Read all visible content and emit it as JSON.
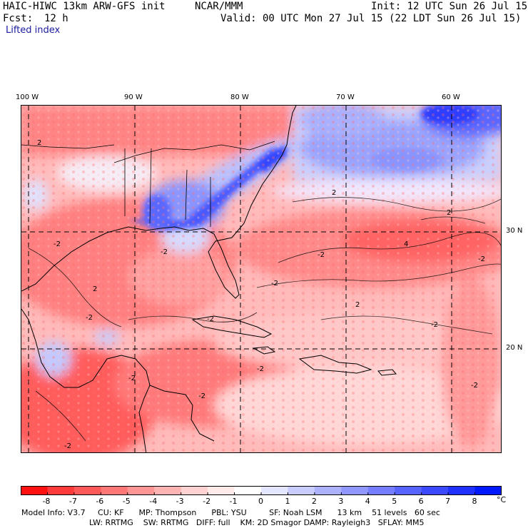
{
  "header": {
    "model_title": "HAIC-HIWC 13km ARW-GFS init",
    "org": "NCAR/MMM",
    "init": "Init: 12 UTC Sun 26 Jul 15",
    "forecast_label": "Fcst:",
    "forecast_value": "12 h",
    "valid": "Valid: 00 UTC Mon 27 Jul 15 (22 LDT Sun 26 Jul 15)",
    "field_name": "Lifted index"
  },
  "map": {
    "lon_labels": [
      "100 W",
      "90 W",
      "80 W",
      "70 W",
      "60 W"
    ],
    "lat_labels": [
      "30 N",
      "20 N"
    ],
    "contour_labels": [
      "2",
      "-2",
      "2",
      "4",
      "-2",
      "2",
      "-2",
      "2",
      "-2",
      "-2",
      "-2",
      "-2",
      "-2",
      "-2",
      "-2",
      "-2",
      "-2",
      "2",
      "-2"
    ]
  },
  "colorbar": {
    "tick_labels": [
      "-8",
      "-7",
      "-6",
      "-5",
      "-4",
      "-3",
      "-2",
      "-1",
      "0",
      "1",
      "2",
      "3",
      "4",
      "5",
      "6",
      "7",
      "8"
    ],
    "unit": "°C",
    "colors": [
      "#ff1111",
      "#ff3a3a",
      "#ff5a5a",
      "#ff7878",
      "#ff9696",
      "#ffb4b4",
      "#ffd2d2",
      "#ffe9e9",
      "#ffffff",
      "#e4e6ff",
      "#c8ccff",
      "#acb2ff",
      "#9098ff",
      "#747eff",
      "#5864ff",
      "#3c4aff",
      "#1f30ff",
      "#0018ff"
    ]
  },
  "model_info": {
    "line1": "Model Info: V3.7     CU: KF      MP: Thompson      PBL: YSU         SF: Noah LSM      13 km    51 levels   60 sec",
    "line2": "LW: RRTMG    SW: RRTMG   DIFF: full    KM: 2D Smagor DAMP: Rayleigh3   SFLAY: MM5"
  }
}
